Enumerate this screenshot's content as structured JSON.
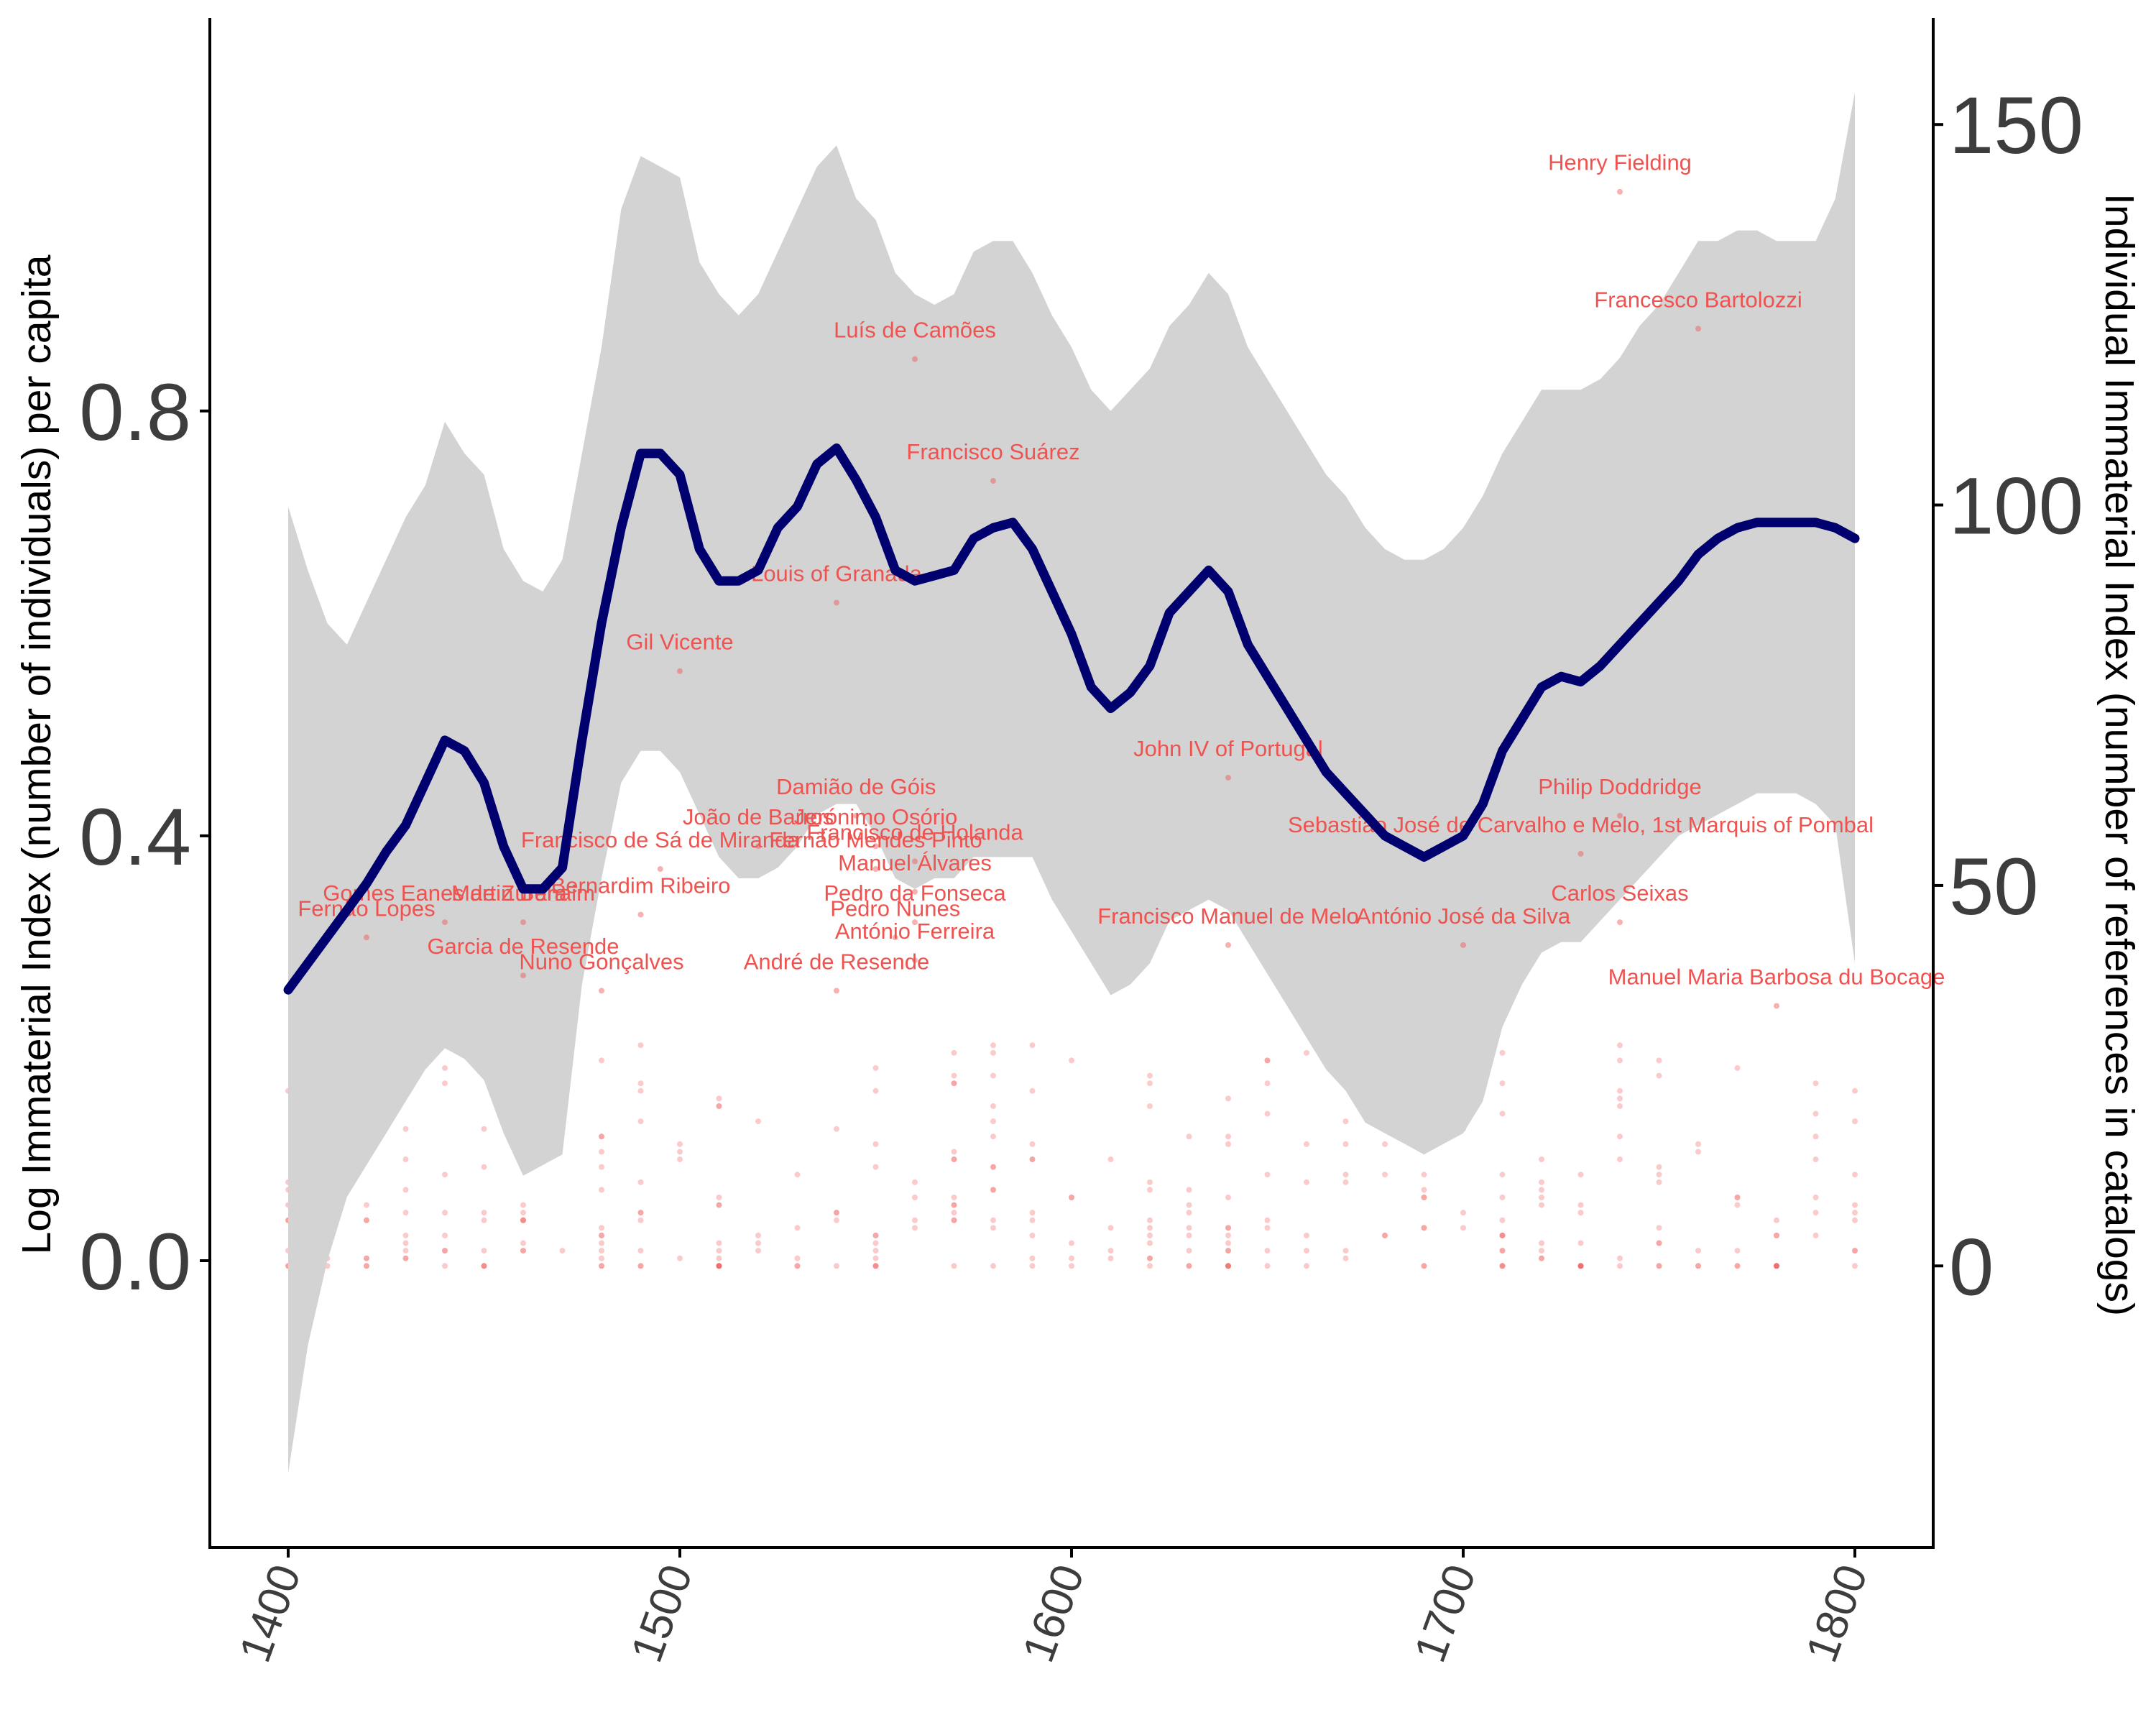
{
  "colors": {
    "line": "#00006e",
    "band": "#d3d3d3",
    "points": "#ef5350",
    "axis": "#000000",
    "tick_text": "#3d3d3d"
  },
  "chart_data": {
    "type": "line",
    "xlabel": "",
    "ylabel": "Log Immaterial Index (number of individuals) per capita",
    "y2label": "Individual Immaterial Index (number of references in catalogs)",
    "x_ticks": [
      "1400",
      "1500",
      "1600",
      "1700",
      "1800"
    ],
    "y_ticks": [
      "0.0",
      "0.4",
      "0.8"
    ],
    "y2_ticks": [
      "0",
      "50",
      "100",
      "150"
    ],
    "xlim": [
      1380,
      1820
    ],
    "ylim": [
      -0.27,
      1.17
    ],
    "y2lim": [
      -37,
      164
    ],
    "grid": false,
    "series": [
      {
        "kind": "smoothed line with confidence band",
        "x": [
          1400,
          1405,
          1410,
          1415,
          1420,
          1425,
          1430,
          1435,
          1440,
          1445,
          1450,
          1455,
          1460,
          1465,
          1470,
          1475,
          1480,
          1485,
          1490,
          1495,
          1500,
          1505,
          1510,
          1515,
          1520,
          1525,
          1530,
          1535,
          1540,
          1545,
          1550,
          1555,
          1560,
          1565,
          1570,
          1575,
          1580,
          1585,
          1590,
          1595,
          1600,
          1605,
          1610,
          1615,
          1620,
          1625,
          1630,
          1635,
          1640,
          1645,
          1650,
          1655,
          1660,
          1665,
          1670,
          1675,
          1680,
          1685,
          1690,
          1695,
          1700,
          1705,
          1710,
          1715,
          1720,
          1725,
          1730,
          1735,
          1740,
          1745,
          1750,
          1755,
          1760,
          1765,
          1770,
          1775,
          1780,
          1785,
          1790,
          1795,
          1800
        ],
        "y": [
          0.255,
          0.28,
          0.305,
          0.33,
          0.355,
          0.385,
          0.41,
          0.45,
          0.49,
          0.48,
          0.45,
          0.39,
          0.35,
          0.35,
          0.37,
          0.49,
          0.6,
          0.69,
          0.76,
          0.76,
          0.74,
          0.67,
          0.64,
          0.64,
          0.65,
          0.69,
          0.71,
          0.75,
          0.765,
          0.735,
          0.7,
          0.65,
          0.64,
          0.645,
          0.65,
          0.68,
          0.69,
          0.695,
          0.67,
          0.63,
          0.59,
          0.54,
          0.52,
          0.535,
          0.56,
          0.61,
          0.63,
          0.65,
          0.63,
          0.58,
          0.55,
          0.52,
          0.49,
          0.46,
          0.44,
          0.42,
          0.4,
          0.39,
          0.38,
          0.39,
          0.4,
          0.43,
          0.48,
          0.51,
          0.54,
          0.55,
          0.545,
          0.56,
          0.58,
          0.6,
          0.62,
          0.64,
          0.665,
          0.68,
          0.69,
          0.695,
          0.695,
          0.695,
          0.695,
          0.69,
          0.68
        ],
        "lower": [
          -0.2,
          -0.08,
          0.0,
          0.06,
          0.09,
          0.12,
          0.15,
          0.18,
          0.2,
          0.19,
          0.17,
          0.12,
          0.08,
          0.09,
          0.1,
          0.26,
          0.36,
          0.45,
          0.48,
          0.48,
          0.46,
          0.42,
          0.38,
          0.36,
          0.36,
          0.37,
          0.39,
          0.42,
          0.43,
          0.43,
          0.4,
          0.36,
          0.35,
          0.36,
          0.36,
          0.38,
          0.38,
          0.38,
          0.38,
          0.34,
          0.31,
          0.28,
          0.25,
          0.26,
          0.28,
          0.32,
          0.33,
          0.34,
          0.33,
          0.3,
          0.27,
          0.24,
          0.21,
          0.18,
          0.16,
          0.13,
          0.12,
          0.11,
          0.1,
          0.11,
          0.12,
          0.15,
          0.22,
          0.26,
          0.29,
          0.3,
          0.3,
          0.32,
          0.34,
          0.36,
          0.38,
          0.4,
          0.41,
          0.42,
          0.43,
          0.44,
          0.44,
          0.44,
          0.43,
          0.41,
          0.28
        ],
        "upper": [
          0.71,
          0.65,
          0.6,
          0.58,
          0.62,
          0.66,
          0.7,
          0.73,
          0.79,
          0.76,
          0.74,
          0.67,
          0.64,
          0.63,
          0.66,
          0.76,
          0.86,
          0.99,
          1.04,
          1.03,
          1.02,
          0.94,
          0.91,
          0.89,
          0.91,
          0.95,
          0.99,
          1.03,
          1.05,
          1.0,
          0.98,
          0.93,
          0.91,
          0.9,
          0.91,
          0.95,
          0.96,
          0.96,
          0.93,
          0.89,
          0.86,
          0.82,
          0.8,
          0.82,
          0.84,
          0.88,
          0.9,
          0.93,
          0.91,
          0.86,
          0.83,
          0.8,
          0.77,
          0.74,
          0.72,
          0.69,
          0.67,
          0.66,
          0.66,
          0.67,
          0.69,
          0.72,
          0.76,
          0.79,
          0.82,
          0.82,
          0.82,
          0.83,
          0.85,
          0.88,
          0.9,
          0.93,
          0.96,
          0.96,
          0.97,
          0.97,
          0.96,
          0.96,
          0.96,
          1.0,
          1.1
        ]
      }
    ],
    "annotations": [
      {
        "label": "Henry Fielding",
        "year": 1740,
        "refs": 144
      },
      {
        "label": "Francesco Bartolozzi",
        "year": 1760,
        "refs": 126
      },
      {
        "label": "Luís de Camões",
        "year": 1560,
        "refs": 122
      },
      {
        "label": "Francisco Suárez",
        "year": 1580,
        "refs": 106
      },
      {
        "label": "Louis of Granada",
        "year": 1540,
        "refs": 90
      },
      {
        "label": "Gil Vicente",
        "year": 1500,
        "refs": 81
      },
      {
        "label": "John IV of Portugal",
        "year": 1640,
        "refs": 67
      },
      {
        "label": "Damião de Góis",
        "year": 1545,
        "refs": 62
      },
      {
        "label": "Philip Doddridge",
        "year": 1740,
        "refs": 62
      },
      {
        "label": "João de Barros",
        "year": 1520,
        "refs": 58
      },
      {
        "label": "Jerónimo Osório",
        "year": 1550,
        "refs": 58
      },
      {
        "label": "Francisco de Holanda",
        "year": 1560,
        "refs": 56
      },
      {
        "label": "Francisco de Sá de Miranda",
        "year": 1495,
        "refs": 55
      },
      {
        "label": "Fernão Mendes Pinto",
        "year": 1550,
        "refs": 55
      },
      {
        "label": "Sebastião José de Carvalho e Melo, 1st Marquis of Pombal",
        "year": 1730,
        "refs": 57
      },
      {
        "label": "Gomes Eanes de Zurara",
        "year": 1440,
        "refs": 48
      },
      {
        "label": "Martin Behaim",
        "year": 1460,
        "refs": 48
      },
      {
        "label": "Bernardim Ribeiro",
        "year": 1490,
        "refs": 49
      },
      {
        "label": "Manuel Álvares",
        "year": 1560,
        "refs": 52
      },
      {
        "label": "Pedro Nunes",
        "year": 1555,
        "refs": 46
      },
      {
        "label": "Pedro da Fonseca",
        "year": 1560,
        "refs": 48
      },
      {
        "label": "Carlos Seixas",
        "year": 1740,
        "refs": 48
      },
      {
        "label": "António José da Silva",
        "year": 1700,
        "refs": 45
      },
      {
        "label": "Fernão Lopes",
        "year": 1420,
        "refs": 46
      },
      {
        "label": "Garcia de Resende",
        "year": 1460,
        "refs": 41
      },
      {
        "label": "António Ferreira",
        "year": 1560,
        "refs": 43
      },
      {
        "label": "Francisco Manuel de Melo",
        "year": 1640,
        "refs": 45
      },
      {
        "label": "Nuno Gonçalves",
        "year": 1480,
        "refs": 39
      },
      {
        "label": "André de Resende",
        "year": 1540,
        "refs": 39
      },
      {
        "label": "Manuel Maria Barbosa du Bocage",
        "year": 1780,
        "refs": 37
      }
    ],
    "point_years": [
      1400,
      1410,
      1420,
      1430,
      1440,
      1450,
      1460,
      1470,
      1480,
      1490,
      1500,
      1510,
      1520,
      1530,
      1540,
      1550,
      1560,
      1570,
      1580,
      1590,
      1600,
      1610,
      1620,
      1630,
      1640,
      1650,
      1660,
      1670,
      1680,
      1690,
      1700,
      1710,
      1720,
      1730,
      1740,
      1750,
      1760,
      1770,
      1780,
      1790,
      1800
    ]
  }
}
